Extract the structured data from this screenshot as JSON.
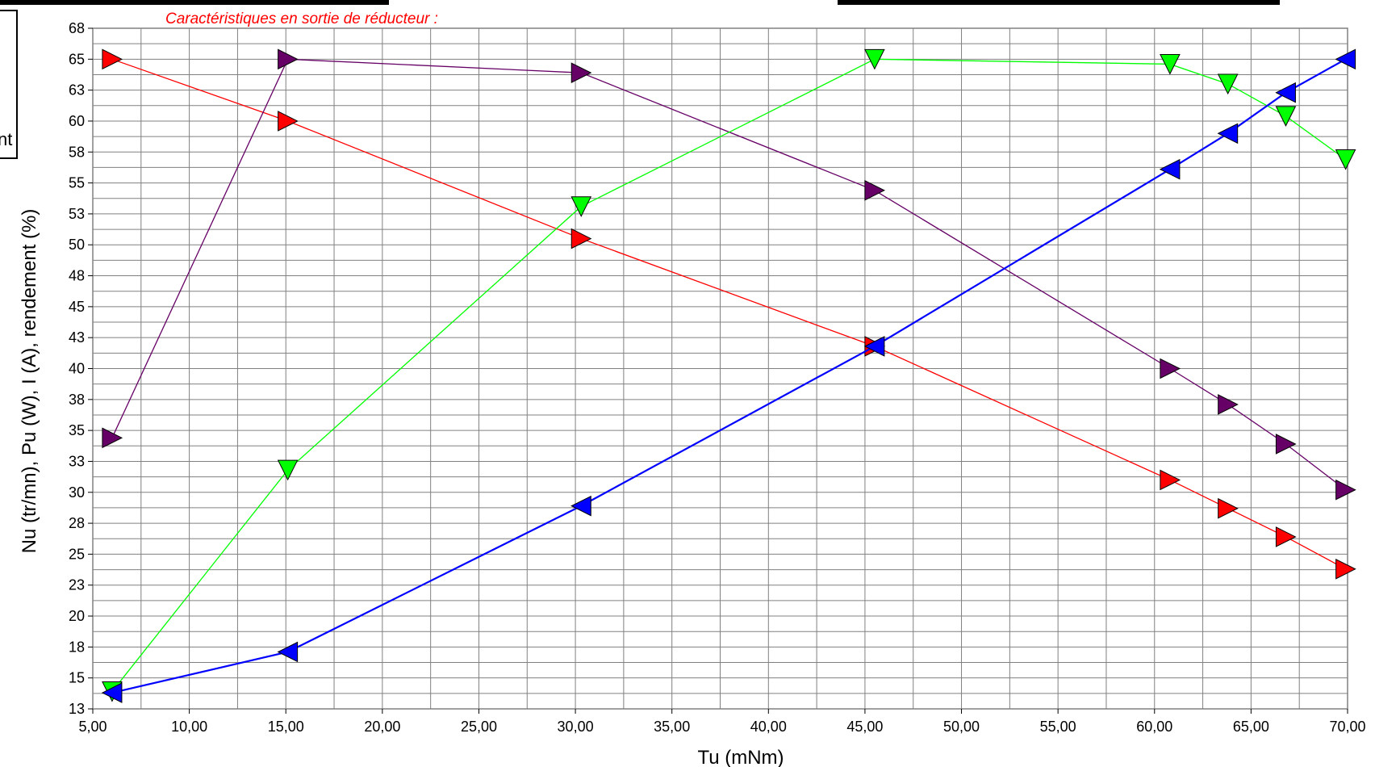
{
  "chart_data": {
    "type": "line",
    "title": "Caractéristiques en sortie de réducteur :",
    "xlabel": "Tu (mNm)",
    "ylabel": "Nu (tr/mn), Pu (W), I (A), rendement (%)",
    "xlim": [
      5,
      70
    ],
    "ylim": [
      13,
      68
    ],
    "x_ticks": [
      "5,00",
      "10,00",
      "15,00",
      "20,00",
      "25,00",
      "30,00",
      "35,00",
      "40,00",
      "45,00",
      "50,00",
      "55,00",
      "60,00",
      "65,00",
      "70,00"
    ],
    "x_tick_values": [
      5,
      10,
      15,
      20,
      25,
      30,
      35,
      40,
      45,
      50,
      55,
      60,
      65,
      70
    ],
    "y_ticks": [
      "13",
      "15",
      "18",
      "20",
      "23",
      "25",
      "28",
      "30",
      "33",
      "35",
      "38",
      "40",
      "43",
      "45",
      "48",
      "50",
      "53",
      "55",
      "58",
      "60",
      "63",
      "65",
      "68"
    ],
    "y_tick_values": [
      13,
      15.5,
      18,
      20.5,
      23,
      25.5,
      28,
      30.5,
      33,
      35.5,
      38,
      40.5,
      43,
      45.5,
      48,
      50.5,
      53,
      55.5,
      58,
      60.5,
      63,
      65.5,
      68
    ],
    "grid": true,
    "series": [
      {
        "color": "#ff0000",
        "marker": "triangle-right",
        "x": [
          6.0,
          15.1,
          30.3,
          45.5,
          60.8,
          63.8,
          66.8,
          69.9
        ],
        "y": [
          65.5,
          60.5,
          51.0,
          42.3,
          31.5,
          29.2,
          26.9,
          24.3
        ]
      },
      {
        "color": "#660066",
        "marker": "triangle-right",
        "x": [
          6.0,
          15.1,
          30.3,
          45.5,
          60.8,
          63.8,
          66.8,
          69.9
        ],
        "y": [
          34.9,
          65.5,
          64.4,
          54.9,
          40.5,
          37.6,
          34.4,
          30.7
        ]
      },
      {
        "color": "#00ff00",
        "marker": "triangle-down",
        "x": [
          6.0,
          15.1,
          30.3,
          45.5,
          60.8,
          63.8,
          66.8,
          69.9
        ],
        "y": [
          14.4,
          32.3,
          53.6,
          65.5,
          65.1,
          63.5,
          60.9,
          57.4
        ]
      },
      {
        "color": "#0000ff",
        "marker": "triangle-left",
        "x": [
          6.0,
          15.1,
          30.3,
          45.5,
          60.8,
          63.8,
          66.8,
          69.9
        ],
        "y": [
          14.3,
          17.6,
          29.4,
          42.3,
          56.6,
          59.5,
          62.8,
          65.5
        ]
      }
    ],
    "legend": {
      "placement": "left (partially cropped)",
      "visible_fragment": "nt"
    }
  }
}
